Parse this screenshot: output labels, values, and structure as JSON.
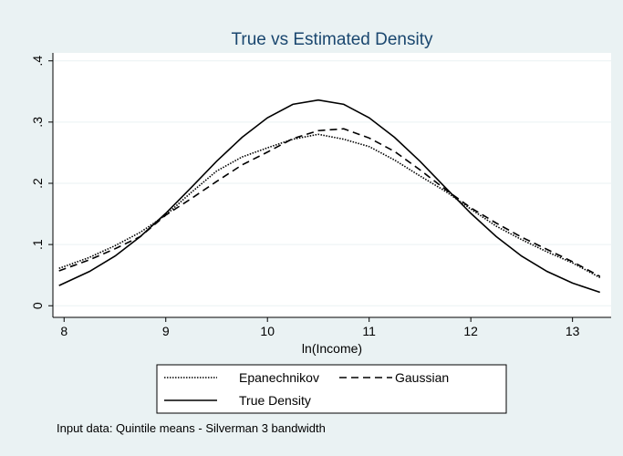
{
  "chart_data": {
    "type": "line",
    "title": "True vs Estimated Density",
    "x_label": "ln(Income)",
    "note": "Input data: Quintile means - Silverman 3 bandwidth",
    "x": [
      7.95,
      8.25,
      8.5,
      8.75,
      9,
      9.25,
      9.5,
      9.75,
      10,
      10.25,
      10.5,
      10.75,
      11,
      11.25,
      11.5,
      11.75,
      12,
      12.25,
      12.5,
      12.75,
      13,
      13.27
    ],
    "series": [
      {
        "name": "Epanechnikov",
        "color": "#000000",
        "style": "dotted",
        "values": [
          0.061,
          0.079,
          0.098,
          0.12,
          0.148,
          0.185,
          0.22,
          0.243,
          0.258,
          0.272,
          0.28,
          0.272,
          0.26,
          0.238,
          0.212,
          0.187,
          0.158,
          0.13,
          0.108,
          0.088,
          0.07,
          0.046
        ]
      },
      {
        "name": "Gaussian",
        "color": "#000000",
        "style": "dashed",
        "values": [
          0.057,
          0.075,
          0.093,
          0.113,
          0.148,
          0.175,
          0.203,
          0.23,
          0.251,
          0.273,
          0.286,
          0.289,
          0.274,
          0.252,
          0.222,
          0.19,
          0.16,
          0.135,
          0.112,
          0.092,
          0.072,
          0.048
        ]
      },
      {
        "name": "True Density",
        "color": "#000000",
        "style": "solid",
        "values": [
          0.033,
          0.056,
          0.081,
          0.113,
          0.151,
          0.193,
          0.236,
          0.275,
          0.307,
          0.329,
          0.336,
          0.329,
          0.307,
          0.275,
          0.236,
          0.193,
          0.151,
          0.113,
          0.081,
          0.056,
          0.037,
          0.022
        ]
      }
    ],
    "xlim": [
      7.89,
      13.38
    ],
    "xticks": [
      8,
      9,
      10,
      11,
      12,
      13
    ],
    "ylim": [
      -0.019,
      0.413
    ],
    "yticks": [
      0,
      {
        "value": 0.1,
        "label": ".1"
      },
      {
        "value": 0.2,
        "label": ".2"
      },
      {
        "value": 0.3,
        "label": ".3"
      },
      {
        "value": 0.4,
        "label": ".4"
      }
    ],
    "grid": true
  }
}
